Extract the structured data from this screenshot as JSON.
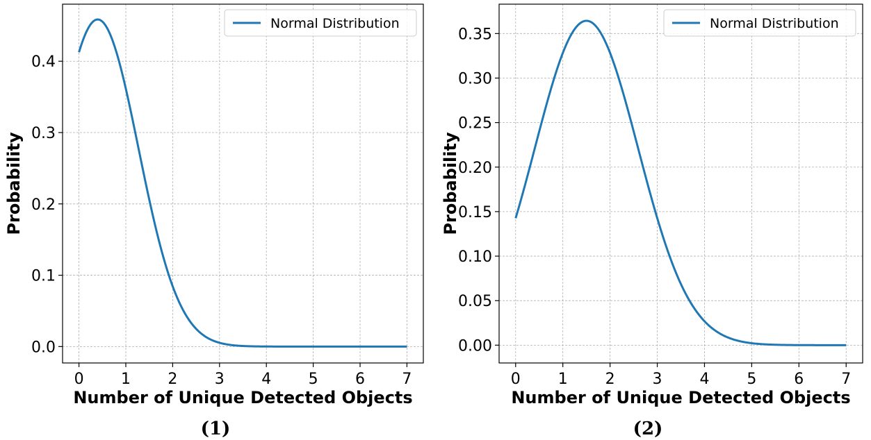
{
  "colors": {
    "series": "#1f77b4"
  },
  "chart_data": [
    {
      "type": "line",
      "caption": "(1)",
      "xlabel": "Number of Unique Detected Objects",
      "ylabel": "Probability",
      "legend": {
        "placement": "top-right",
        "entries": [
          "Normal Distribution"
        ]
      },
      "grid": true,
      "xlim": [
        -0.35,
        7.35
      ],
      "ylim": [
        -0.023,
        0.48
      ],
      "xticks": [
        0,
        1,
        2,
        3,
        4,
        5,
        6,
        7
      ],
      "xtick_labels": [
        "0",
        "1",
        "2",
        "3",
        "4",
        "5",
        "6",
        "7"
      ],
      "yticks": [
        0.0,
        0.1,
        0.2,
        0.3,
        0.4
      ],
      "ytick_labels": [
        "0.0",
        "0.1",
        "0.2",
        "0.3",
        "0.4"
      ],
      "series": [
        {
          "name": "Normal Distribution",
          "distribution": {
            "mean": 0.4,
            "std": 0.87,
            "x_range": [
              0,
              7
            ]
          }
        }
      ]
    },
    {
      "type": "line",
      "caption": "(2)",
      "xlabel": "Number of Unique Detected Objects",
      "ylabel": "Probability",
      "legend": {
        "placement": "top-right",
        "entries": [
          "Normal Distribution"
        ]
      },
      "grid": true,
      "xlim": [
        -0.35,
        7.35
      ],
      "ylim": [
        -0.02,
        0.383
      ],
      "xticks": [
        0,
        1,
        2,
        3,
        4,
        5,
        6,
        7
      ],
      "xtick_labels": [
        "0",
        "1",
        "2",
        "3",
        "4",
        "5",
        "6",
        "7"
      ],
      "yticks": [
        0.0,
        0.05,
        0.1,
        0.15,
        0.2,
        0.25,
        0.3,
        0.35
      ],
      "ytick_labels": [
        "0.00",
        "0.05",
        "0.10",
        "0.15",
        "0.20",
        "0.25",
        "0.30",
        "0.35"
      ],
      "series": [
        {
          "name": "Normal Distribution",
          "distribution": {
            "mean": 1.5,
            "std": 1.095,
            "x_range": [
              0,
              7
            ]
          }
        }
      ]
    }
  ]
}
